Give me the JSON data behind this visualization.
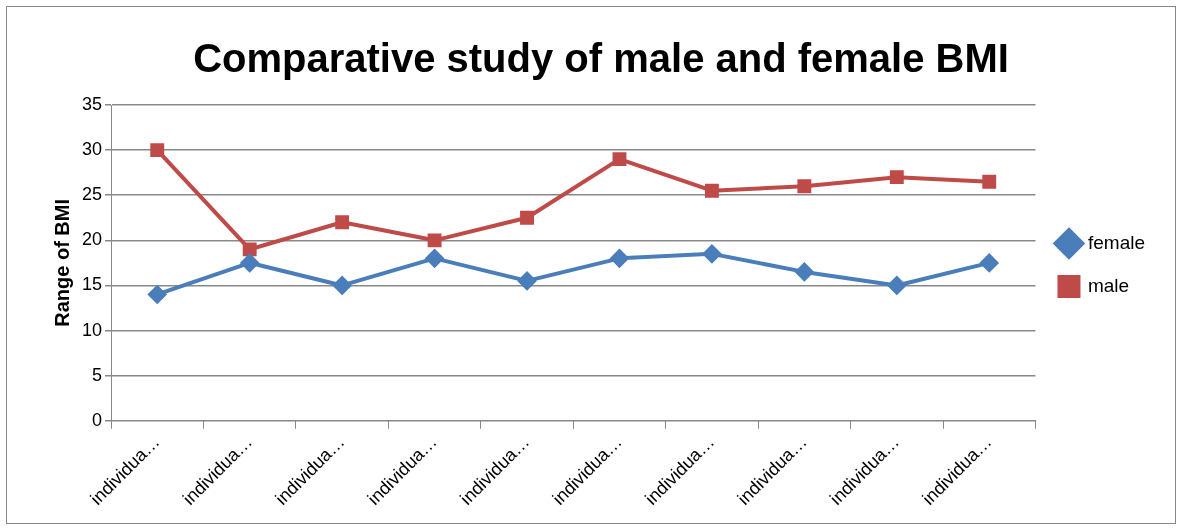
{
  "chart_data": {
    "type": "line",
    "title": "Comparative study of male and female BMI",
    "ylabel": "Range of BMI",
    "categories": [
      "individua…",
      "individua…",
      "individua…",
      "individua…",
      "individua…",
      "individua…",
      "individua…",
      "individua…",
      "individua…",
      "individua…"
    ],
    "series": [
      {
        "name": "female",
        "color": "#4a7ebb",
        "marker": "diamond",
        "values": [
          14,
          17.5,
          15,
          18,
          15.5,
          18,
          18.5,
          16.5,
          15,
          17.5
        ]
      },
      {
        "name": "male",
        "color": "#be4b48",
        "marker": "square",
        "values": [
          30,
          19,
          22,
          20,
          22.5,
          29,
          25.5,
          26,
          27,
          26.5
        ]
      }
    ],
    "ylim": [
      0,
      35
    ],
    "yticks": [
      0,
      5,
      10,
      15,
      20,
      25,
      30,
      35
    ],
    "grid": "y",
    "legend": "right"
  }
}
